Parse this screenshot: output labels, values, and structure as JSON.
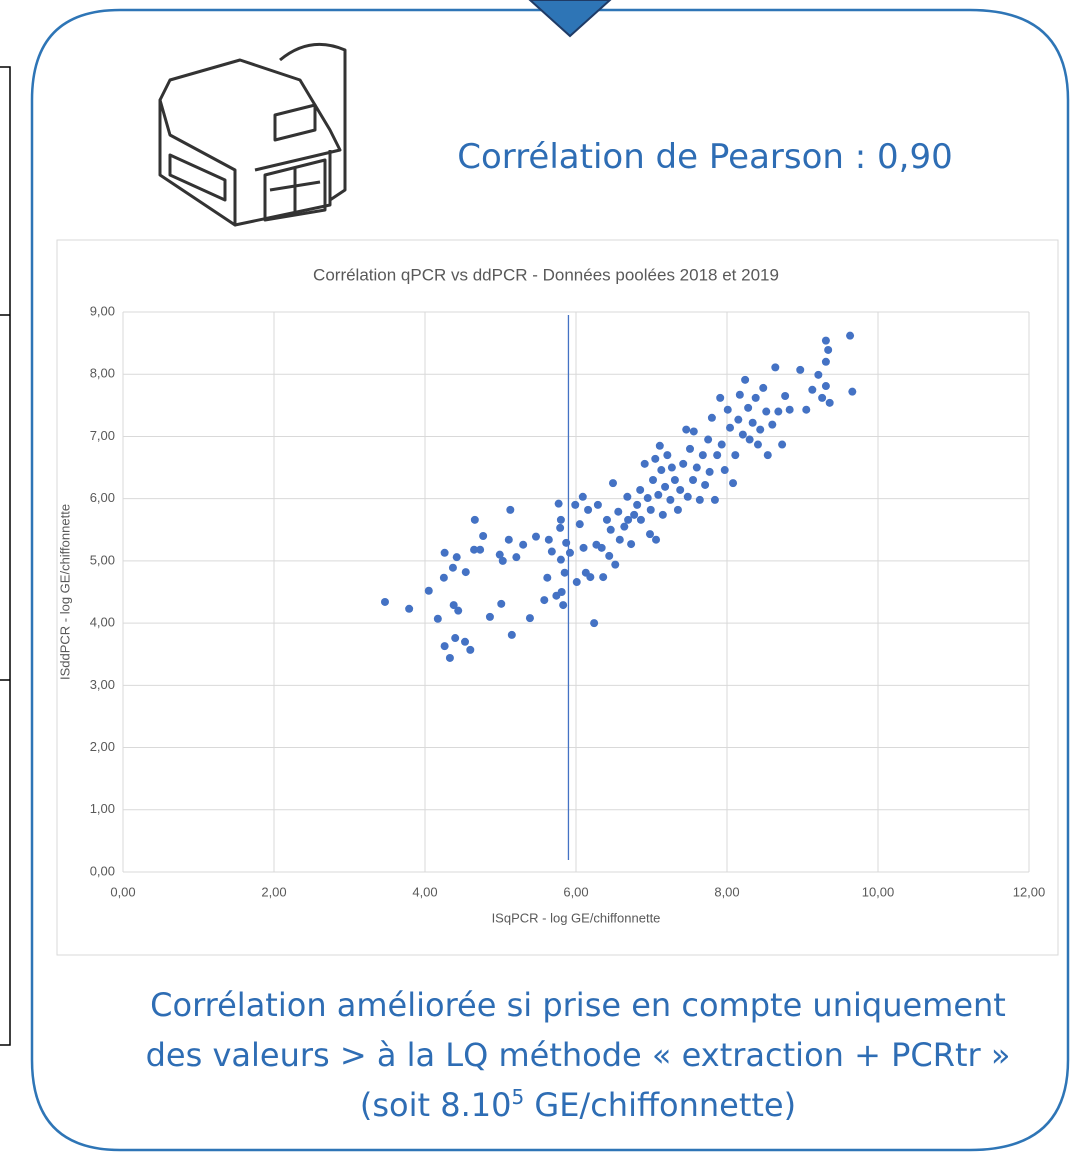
{
  "header": {
    "pearson": "Corrélation de Pearson : 0,90"
  },
  "caption": {
    "line1": "Corrélation améliorée si prise en compte uniquement",
    "line2": "des valeurs > à la LQ méthode « extraction + PCRtr »",
    "line3": [
      "(soit 8.10",
      "5",
      " GE/chiffonnette)"
    ]
  },
  "chart_data": {
    "type": "scatter",
    "title": "Corrélation qPCR vs ddPCR - Données poolées 2018 et 2019",
    "x_label": "ISqPCR - log GE/chiffonnette",
    "y_label": "ISddPCR - log GE/chiffonnette",
    "color": "#4472c4",
    "grid": true,
    "vline": 5.9,
    "vline_color": "#4472c4",
    "xlim": [
      0,
      12
    ],
    "ylim": [
      0,
      9
    ],
    "xticks": [
      {
        "value": 0,
        "label": "0,00"
      },
      {
        "value": 2,
        "label": "2,00"
      },
      {
        "value": 4,
        "label": "4,00"
      },
      {
        "value": 6,
        "label": "6,00"
      },
      {
        "value": 8,
        "label": "8,00"
      },
      {
        "value": 10,
        "label": "10,00"
      },
      {
        "value": 12,
        "label": "12,00"
      }
    ],
    "yticks": [
      {
        "value": 0,
        "label": "0,00"
      },
      {
        "value": 1,
        "label": "1,00"
      },
      {
        "value": 2,
        "label": "2,00"
      },
      {
        "value": 3,
        "label": "3,00"
      },
      {
        "value": 4,
        "label": "4,00"
      },
      {
        "value": 5,
        "label": "5,00"
      },
      {
        "value": 6,
        "label": "6,00"
      },
      {
        "value": 7,
        "label": "7,00"
      },
      {
        "value": 8,
        "label": "8,00"
      },
      {
        "value": 9,
        "label": "9,00"
      }
    ],
    "x": [
      3.47,
      3.79,
      4.05,
      4.17,
      4.26,
      4.25,
      4.26,
      4.33,
      4.37,
      4.38,
      4.4,
      4.42,
      4.44,
      4.53,
      4.54,
      4.6,
      4.66,
      4.65,
      4.73,
      4.77,
      4.86,
      4.99,
      5.03,
      5.01,
      5.11,
      5.13,
      5.15,
      5.21,
      5.3,
      5.39,
      5.47,
      5.58,
      5.62,
      5.64,
      5.68,
      5.74,
      5.77,
      5.8,
      5.79,
      5.8,
      5.81,
      5.83,
      5.85,
      5.87,
      5.92,
      5.99,
      6.01,
      6.05,
      6.09,
      6.1,
      6.13,
      6.16,
      6.19,
      6.24,
      6.27,
      6.29,
      6.34,
      6.36,
      6.41,
      6.44,
      6.46,
      6.49,
      6.52,
      6.56,
      6.58,
      6.64,
      6.68,
      6.69,
      6.73,
      6.77,
      6.81,
      6.85,
      6.86,
      6.91,
      6.95,
      6.98,
      6.99,
      7.02,
      7.05,
      7.06,
      7.09,
      7.11,
      7.13,
      7.15,
      7.18,
      7.21,
      7.25,
      7.27,
      7.31,
      7.35,
      7.38,
      7.42,
      7.46,
      7.48,
      7.51,
      7.55,
      7.56,
      7.6,
      7.64,
      7.68,
      7.71,
      7.75,
      7.77,
      7.8,
      7.84,
      7.87,
      7.91,
      7.93,
      7.97,
      8.01,
      8.04,
      8.08,
      8.11,
      8.15,
      8.17,
      8.21,
      8.24,
      8.28,
      8.3,
      8.34,
      8.38,
      8.41,
      8.44,
      8.48,
      8.52,
      8.54,
      8.6,
      8.64,
      8.68,
      8.73,
      8.77,
      8.83,
      8.97,
      9.05,
      9.13,
      9.21,
      9.26,
      9.31,
      9.31,
      9.34,
      9.36,
      9.31,
      9.63,
      9.66
    ],
    "values": [
      4.34,
      4.23,
      4.52,
      4.07,
      5.13,
      4.73,
      3.63,
      3.44,
      4.89,
      4.29,
      3.76,
      5.06,
      4.2,
      3.7,
      4.82,
      3.57,
      5.66,
      5.18,
      5.18,
      5.4,
      4.1,
      5.1,
      5.0,
      4.31,
      5.34,
      5.82,
      3.81,
      5.06,
      5.26,
      4.08,
      5.39,
      4.37,
      4.73,
      5.34,
      5.15,
      4.44,
      5.92,
      5.66,
      5.53,
      5.02,
      4.5,
      4.29,
      4.81,
      5.29,
      5.13,
      5.9,
      4.66,
      5.59,
      6.03,
      5.21,
      4.81,
      5.82,
      4.74,
      4.0,
      5.26,
      5.9,
      5.21,
      4.74,
      5.66,
      5.08,
      5.5,
      6.25,
      4.94,
      5.79,
      5.34,
      5.55,
      6.03,
      5.66,
      5.27,
      5.74,
      5.9,
      6.14,
      5.66,
      6.56,
      6.01,
      5.43,
      5.82,
      6.3,
      6.64,
      5.34,
      6.06,
      6.85,
      6.46,
      5.74,
      6.19,
      6.7,
      5.98,
      6.5,
      6.3,
      5.82,
      6.14,
      6.56,
      7.11,
      6.03,
      6.8,
      6.3,
      7.08,
      6.5,
      5.98,
      6.7,
      6.22,
      6.95,
      6.43,
      7.3,
      5.98,
      6.7,
      7.62,
      6.87,
      6.46,
      7.43,
      7.14,
      6.25,
      6.7,
      7.27,
      7.67,
      7.03,
      7.91,
      7.46,
      6.95,
      7.22,
      7.62,
      6.87,
      7.11,
      7.78,
      7.4,
      6.7,
      7.19,
      8.11,
      7.4,
      6.87,
      7.65,
      7.43,
      8.07,
      7.43,
      7.75,
      7.99,
      7.62,
      8.2,
      7.81,
      8.39,
      7.54,
      8.54,
      8.62,
      7.72
    ]
  }
}
